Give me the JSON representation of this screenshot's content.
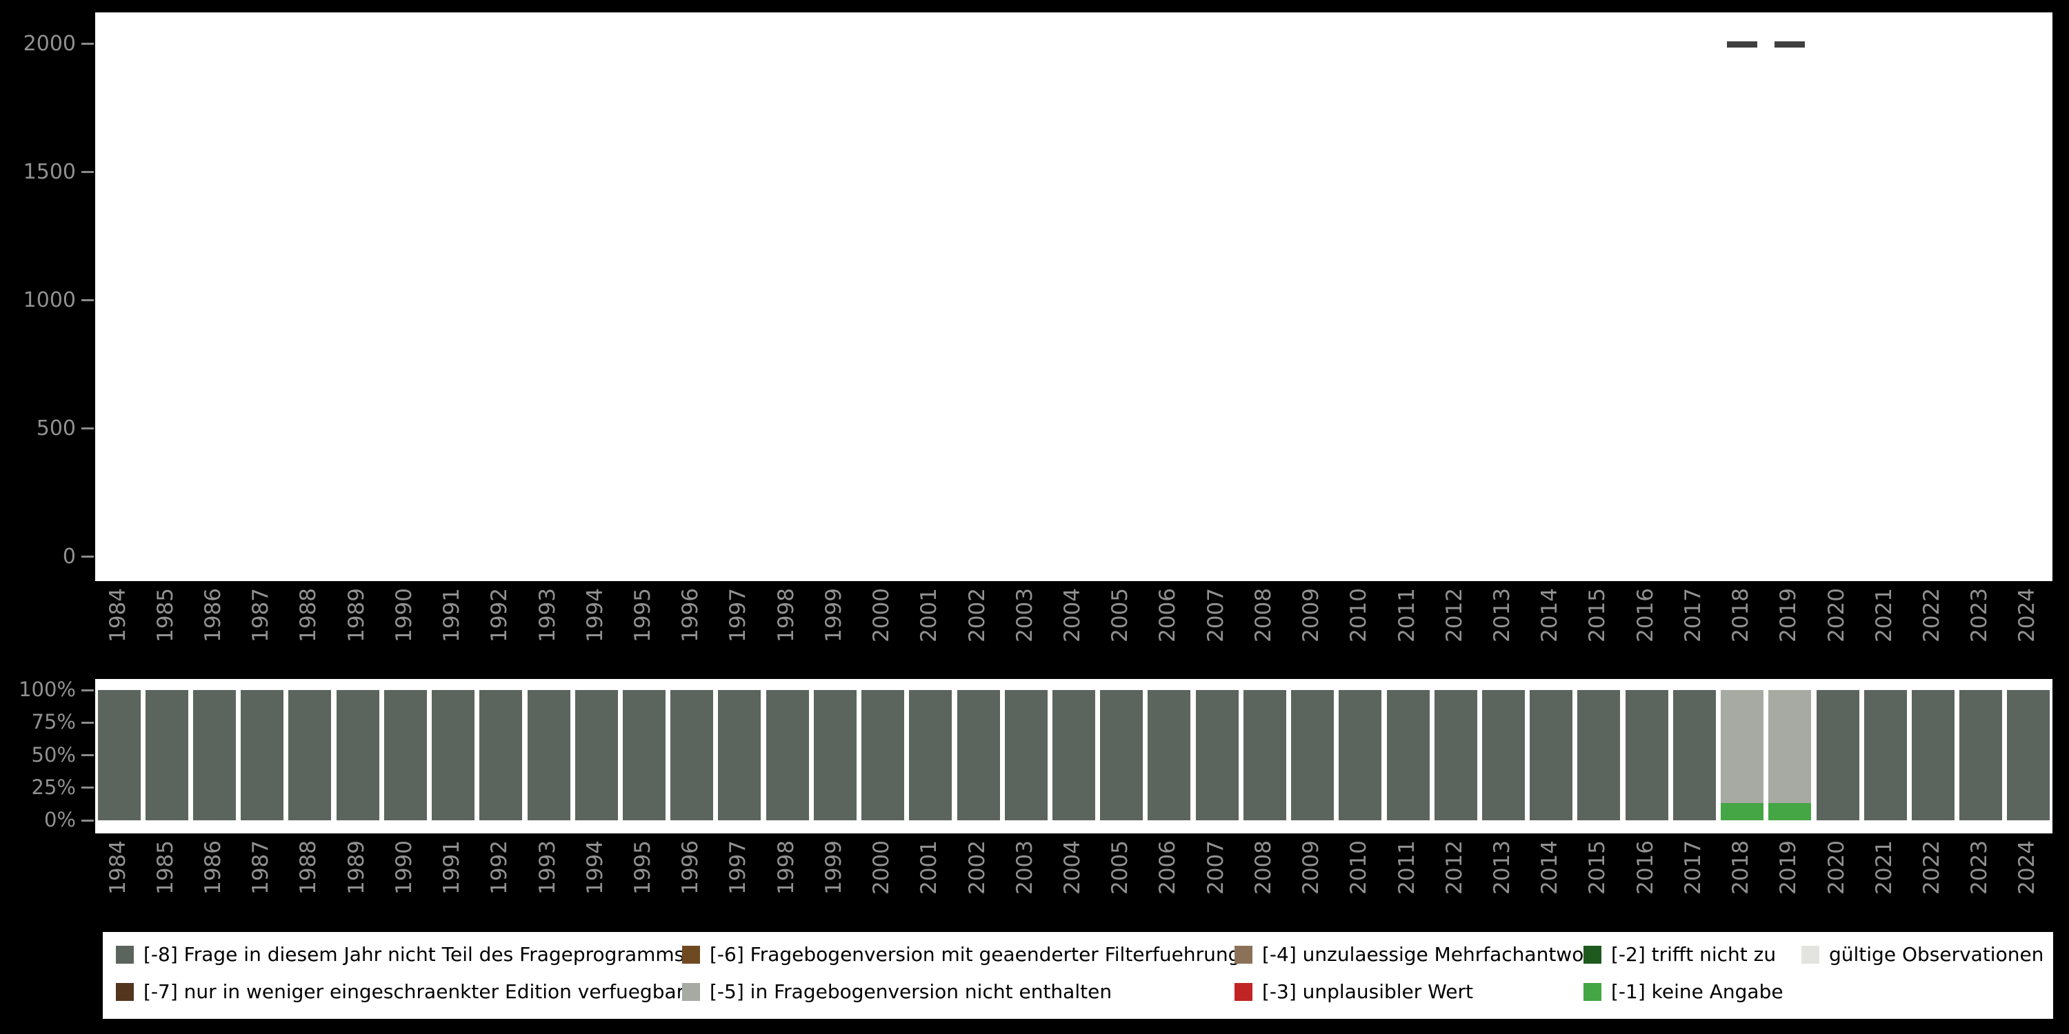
{
  "figure": {
    "background": "#000000",
    "plot_background": "#ffffff",
    "axis_label_color": "#919191",
    "tick_color": "#8b8b8b"
  },
  "chart_data": [
    {
      "type": "scatter",
      "name": "top-count-range-chart",
      "marker": "horizontal-dash",
      "marker_color": "#3f3f3f",
      "x": [
        "1984",
        "1985",
        "1986",
        "1987",
        "1988",
        "1989",
        "1990",
        "1991",
        "1992",
        "1993",
        "1994",
        "1995",
        "1996",
        "1997",
        "1998",
        "1999",
        "2000",
        "2001",
        "2002",
        "2003",
        "2004",
        "2005",
        "2006",
        "2007",
        "2008",
        "2009",
        "2010",
        "2011",
        "2012",
        "2013",
        "2014",
        "2015",
        "2016",
        "2017",
        "2018",
        "2019",
        "2020",
        "2021",
        "2022",
        "2023",
        "2024"
      ],
      "points": [
        {
          "x": "2018",
          "y": 1995
        },
        {
          "x": "2019",
          "y": 1995
        }
      ],
      "ylim": [
        0,
        2000
      ],
      "yticks": [
        "2000",
        "1500",
        "1000",
        "500",
        "0"
      ],
      "grid": false,
      "legend_position": "none"
    },
    {
      "type": "bar",
      "name": "bottom-percent-stacked-chart",
      "stacked": true,
      "percent": true,
      "stack_order": "bottom-to-top",
      "categories": [
        "1984",
        "1985",
        "1986",
        "1987",
        "1988",
        "1989",
        "1990",
        "1991",
        "1992",
        "1993",
        "1994",
        "1995",
        "1996",
        "1997",
        "1998",
        "1999",
        "2000",
        "2001",
        "2002",
        "2003",
        "2004",
        "2005",
        "2006",
        "2007",
        "2008",
        "2009",
        "2010",
        "2011",
        "2012",
        "2013",
        "2014",
        "2015",
        "2016",
        "2017",
        "2018",
        "2019",
        "2020",
        "2021",
        "2022",
        "2023",
        "2024"
      ],
      "series": [
        {
          "name": "[-8] Frage in diesem Jahr nicht Teil des Frageprogramms",
          "color": "#5b655d",
          "values": [
            100,
            100,
            100,
            100,
            100,
            100,
            100,
            100,
            100,
            100,
            100,
            100,
            100,
            100,
            100,
            100,
            100,
            100,
            100,
            100,
            100,
            100,
            100,
            100,
            100,
            100,
            100,
            100,
            100,
            100,
            100,
            100,
            100,
            100,
            0,
            0,
            100,
            100,
            100,
            100,
            100
          ]
        },
        {
          "name": "[-1] keine Angabe",
          "color": "#44a644",
          "values": [
            0,
            0,
            0,
            0,
            0,
            0,
            0,
            0,
            0,
            0,
            0,
            0,
            0,
            0,
            0,
            0,
            0,
            0,
            0,
            0,
            0,
            0,
            0,
            0,
            0,
            0,
            0,
            0,
            0,
            0,
            0,
            0,
            0,
            0,
            13,
            13,
            0,
            0,
            0,
            0,
            0
          ]
        },
        {
          "name": "[-5] in Fragebogenversion nicht enthalten",
          "color": "#a6aaa2",
          "values": [
            0,
            0,
            0,
            0,
            0,
            0,
            0,
            0,
            0,
            0,
            0,
            0,
            0,
            0,
            0,
            0,
            0,
            0,
            0,
            0,
            0,
            0,
            0,
            0,
            0,
            0,
            0,
            0,
            0,
            0,
            0,
            0,
            0,
            0,
            87,
            87,
            0,
            0,
            0,
            0,
            0
          ]
        }
      ],
      "ylim": [
        0,
        100
      ],
      "yticks": [
        "100%",
        "75%",
        "50%",
        "25%",
        "0%"
      ],
      "grid": false,
      "legend_position": "bottom"
    }
  ],
  "legend": {
    "background": "#ffffff",
    "text_color": "#000000",
    "items": [
      {
        "key": "m8",
        "label": "[-8] Frage in diesem Jahr nicht Teil des Frageprogramms",
        "color": "#5b655d"
      },
      {
        "key": "m7",
        "label": "[-7] nur in weniger eingeschraenkter Edition verfuegbar",
        "color": "#53351d"
      },
      {
        "key": "m6",
        "label": "[-6] Fragebogenversion mit geaenderter Filterfuehrung",
        "color": "#6f4a21"
      },
      {
        "key": "m5",
        "label": "[-5] in Fragebogenversion nicht enthalten",
        "color": "#a6aaa2"
      },
      {
        "key": "m4",
        "label": "[-4] unzulaessige Mehrfachantwort",
        "color": "#8a7158"
      },
      {
        "key": "m3",
        "label": "[-3] unplausibler Wert",
        "color": "#c02424"
      },
      {
        "key": "m2",
        "label": "[-2] trifft nicht zu",
        "color": "#1e5a1e"
      },
      {
        "key": "m1",
        "label": "[-1] keine Angabe",
        "color": "#44a644"
      },
      {
        "key": "valid",
        "label": "gültige Observationen",
        "color": "#e3e3e0"
      }
    ]
  }
}
